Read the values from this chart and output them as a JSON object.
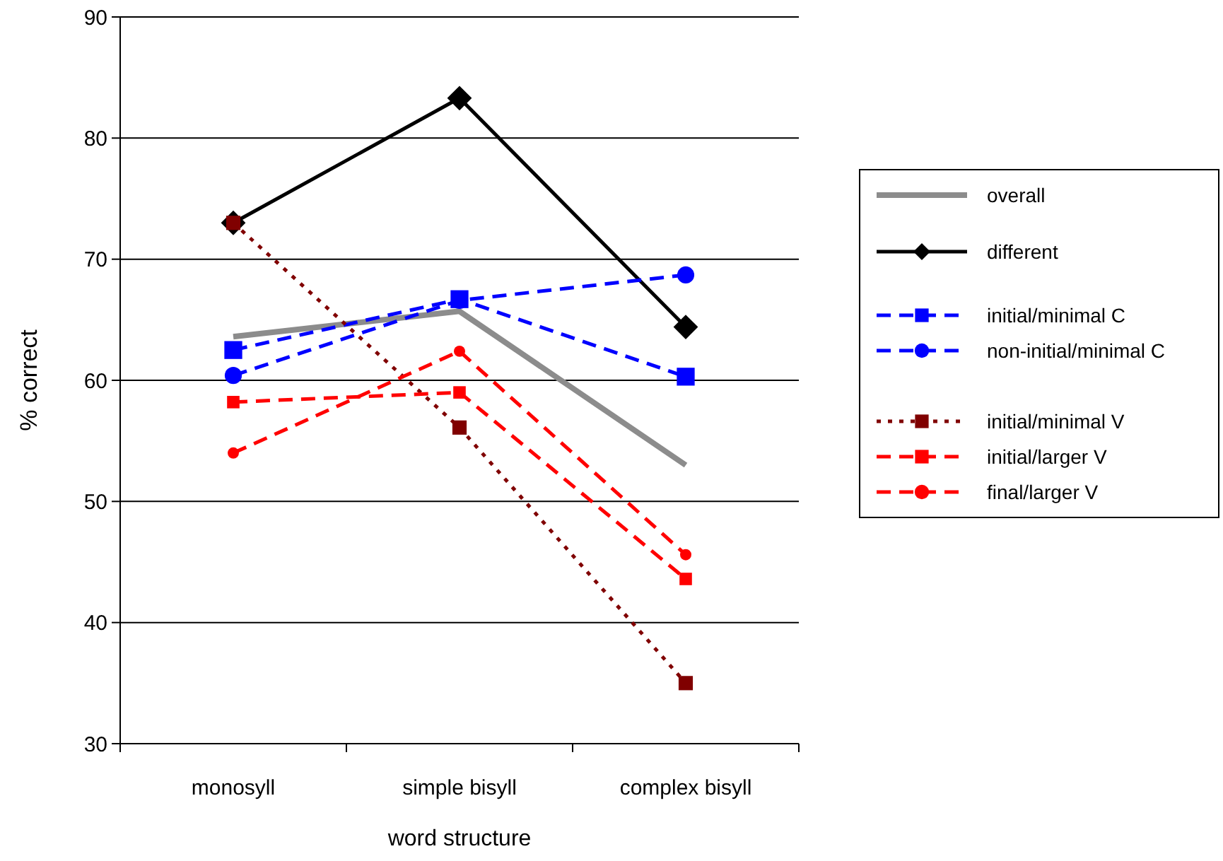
{
  "chart_data": {
    "type": "line",
    "xlabel": "word structure",
    "ylabel": "% correct",
    "categories": [
      "monosyll",
      "simple bisyll",
      "complex bisyll"
    ],
    "ylim": [
      30,
      90
    ],
    "yticks": [
      30,
      40,
      50,
      60,
      70,
      80,
      90
    ],
    "grid": "y",
    "legend": "right",
    "series": [
      {
        "name": "overall",
        "color": "#8c8c8c",
        "values": [
          63.6,
          65.7,
          53.0
        ],
        "marker": "none",
        "line_style": "solid"
      },
      {
        "name": "different",
        "color": "#000000",
        "values": [
          73.0,
          83.3,
          64.4
        ],
        "marker": "diamond",
        "line_style": "solid"
      },
      {
        "name": "initial/minimal C",
        "color": "#0000ff",
        "values": [
          62.5,
          66.7,
          60.3
        ],
        "marker": "square",
        "line_style": "dashed"
      },
      {
        "name": "non-initial/minimal C",
        "color": "#0000ff",
        "values": [
          60.4,
          66.6,
          68.7
        ],
        "marker": "circle",
        "line_style": "dashed"
      },
      {
        "name": "initial/minimal V",
        "color": "#800000",
        "values": [
          73.0,
          56.1,
          35.0
        ],
        "marker": "square",
        "line_style": "dotted"
      },
      {
        "name": "initial/larger V",
        "color": "#ff0000",
        "values": [
          58.2,
          59.0,
          43.6
        ],
        "marker": "square",
        "line_style": "dashed"
      },
      {
        "name": "final/larger V",
        "color": "#ff0000",
        "values": [
          54.0,
          62.4,
          45.6
        ],
        "marker": "circle",
        "line_style": "dashed"
      }
    ]
  }
}
